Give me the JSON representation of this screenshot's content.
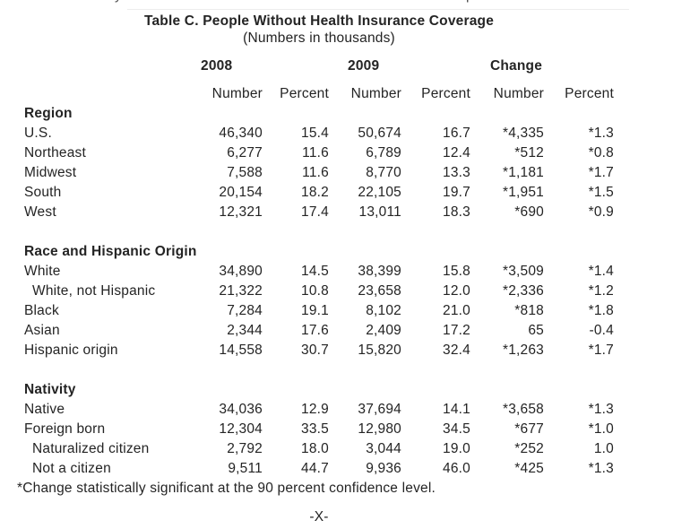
{
  "page": {
    "background": "#ffffff",
    "text_color": "#242424",
    "top_fragment": {
      "glyphs": [
        "y",
        "p"
      ]
    },
    "page_marker": "-X-"
  },
  "table": {
    "title": "Table C. People Without Health Insurance Coverage",
    "subtitle": "(Numbers in thousands)",
    "year_groups": [
      "2008",
      "2009",
      "Change"
    ],
    "column_headers": [
      "Number",
      "Percent",
      "Number",
      "Percent",
      "Number",
      "Percent"
    ],
    "sections": [
      {
        "heading": "Region",
        "rows": [
          {
            "label": "U.S.",
            "indent": false,
            "values": [
              "46,340",
              "15.4",
              "50,674",
              "16.7",
              "*4,335",
              "*1.3"
            ]
          },
          {
            "label": "Northeast",
            "indent": false,
            "values": [
              "6,277",
              "11.6",
              "6,789",
              "12.4",
              "*512",
              "*0.8"
            ]
          },
          {
            "label": "Midwest",
            "indent": false,
            "values": [
              "7,588",
              "11.6",
              "8,770",
              "13.3",
              "*1,181",
              "*1.7"
            ]
          },
          {
            "label": "South",
            "indent": false,
            "values": [
              "20,154",
              "18.2",
              "22,105",
              "19.7",
              "*1,951",
              "*1.5"
            ]
          },
          {
            "label": "West",
            "indent": false,
            "values": [
              "12,321",
              "17.4",
              "13,011",
              "18.3",
              "*690",
              "*0.9"
            ]
          }
        ]
      },
      {
        "heading": "Race and Hispanic Origin",
        "rows": [
          {
            "label": "White",
            "indent": false,
            "values": [
              "34,890",
              "14.5",
              "38,399",
              "15.8",
              "*3,509",
              "*1.4"
            ]
          },
          {
            "label": "White, not Hispanic",
            "indent": true,
            "values": [
              "21,322",
              "10.8",
              "23,658",
              "12.0",
              "*2,336",
              "*1.2"
            ]
          },
          {
            "label": "Black",
            "indent": false,
            "values": [
              "7,284",
              "19.1",
              "8,102",
              "21.0",
              "*818",
              "*1.8"
            ]
          },
          {
            "label": "Asian",
            "indent": false,
            "values": [
              "2,344",
              "17.6",
              "2,409",
              "17.2",
              "65",
              "-0.4"
            ]
          },
          {
            "label": "Hispanic origin",
            "indent": false,
            "values": [
              "14,558",
              "30.7",
              "15,820",
              "32.4",
              "*1,263",
              "*1.7"
            ]
          }
        ]
      },
      {
        "heading": "Nativity",
        "rows": [
          {
            "label": "Native",
            "indent": false,
            "values": [
              "34,036",
              "12.9",
              "37,694",
              "14.1",
              "*3,658",
              "*1.3"
            ]
          },
          {
            "label": "Foreign born",
            "indent": false,
            "values": [
              "12,304",
              "33.5",
              "12,980",
              "34.5",
              "*677",
              "*1.0"
            ]
          },
          {
            "label": "Naturalized citizen",
            "indent": true,
            "values": [
              "2,792",
              "18.0",
              "3,044",
              "19.0",
              "*252",
              "1.0"
            ]
          },
          {
            "label": "Not a citizen",
            "indent": true,
            "values": [
              "9,511",
              "44.7",
              "9,936",
              "46.0",
              "*425",
              "*1.3"
            ]
          }
        ]
      }
    ],
    "footnote": "*Change statistically significant at the 90 percent confidence level."
  }
}
